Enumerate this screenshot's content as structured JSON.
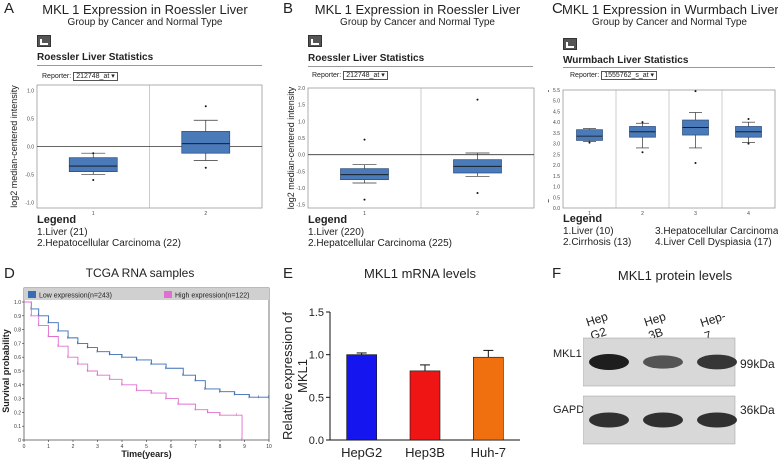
{
  "panels": {
    "A": {
      "label": "A",
      "title": "MKL 1 Expression in Roessler Liver",
      "subtitle": "Group by Cancer and Normal Type",
      "stats_title": "Roessler Liver Statistics",
      "reporter_label": "Reporter:",
      "reporter_value": "212748_at",
      "legend_title": "Legend",
      "legend_items": [
        "1.Liver (21)",
        "2.Hepatocellular Carcinoma (22)"
      ]
    },
    "B": {
      "label": "B",
      "title": "MKL 1 Expression in Roessler Liver",
      "subtitle": "Group by Cancer and Normal Type",
      "stats_title": "Roessler Liver Statistics",
      "reporter_label": "Reporter:",
      "reporter_value": "212748_at",
      "legend_title": "Legend",
      "legend_items": [
        "1.Liver (220)",
        "2.Hepatcellular Carcinoma (225)"
      ]
    },
    "C": {
      "label": "C",
      "title": "MKL 1 Expression in Wurmbach Liver",
      "subtitle": "Group by Cancer and Normal Type",
      "stats_title": "Wurmbach Liver Statistics",
      "reporter_label": "Reporter:",
      "reporter_value": "1555762_s_at",
      "legend_title": "Legend",
      "legend_items": [
        "1.Liver (10)",
        "2.Cirrhosis (13)",
        "3.Hepatocellular Carcinoma (35)",
        "4.Liver Cell Dyspiasia (17)"
      ]
    },
    "D": {
      "label": "D"
    },
    "E": {
      "label": "E"
    },
    "F": {
      "label": "F",
      "title": "MKL1 protein levels"
    }
  },
  "blot": {
    "lanes": [
      "Hep G2",
      "Hep 3B",
      "Hep-7"
    ],
    "rows": [
      {
        "name": "MKL1",
        "size": "99kDa",
        "intensities": [
          1.0,
          0.55,
          0.8
        ]
      },
      {
        "name": "GAPDH",
        "size": "36kDa",
        "intensities": [
          0.85,
          0.85,
          0.85
        ]
      }
    ]
  },
  "chart_data": [
    {
      "type": "box",
      "id": "A",
      "ylabel": "log2 median-centered intensity",
      "ylim": [
        -1.1,
        1.1
      ],
      "yticks": [
        -1.0,
        -0.5,
        0.0,
        0.5,
        1.0
      ],
      "ytick_labels": [
        "-1.0",
        "-0.5",
        "0.0",
        "0.5",
        "1.0"
      ],
      "categories": [
        "1",
        "2"
      ],
      "boxes": [
        {
          "min": -0.5,
          "q1": -0.45,
          "median": -0.35,
          "q3": -0.2,
          "max": -0.12,
          "outliers": [
            -0.12,
            -0.6
          ]
        },
        {
          "min": -0.25,
          "q1": -0.12,
          "median": 0.05,
          "q3": 0.27,
          "max": 0.47,
          "outliers": [
            0.72,
            -0.38
          ]
        }
      ]
    },
    {
      "type": "box",
      "id": "B",
      "ylabel": "log2 median-centered intensity",
      "ylim": [
        -1.6,
        2.0
      ],
      "yticks": [
        -1.5,
        -1.0,
        -0.5,
        0.0,
        0.5,
        1.0,
        1.5,
        2.0
      ],
      "ytick_labels": [
        "-1.5",
        "-1.0",
        "-0.5",
        "0.0",
        "0.5",
        "1.0",
        "1.5",
        "2.0"
      ],
      "categories": [
        "1",
        "2"
      ],
      "boxes": [
        {
          "min": -0.85,
          "q1": -0.75,
          "median": -0.6,
          "q3": -0.42,
          "max": -0.3,
          "outliers": [
            0.45,
            -1.35
          ]
        },
        {
          "min": -0.65,
          "q1": -0.55,
          "median": -0.35,
          "q3": -0.15,
          "max": 0.05,
          "outliers": [
            1.65,
            -1.15
          ]
        }
      ]
    },
    {
      "type": "box",
      "id": "C",
      "ylabel": "log2 median-centered intensity",
      "ylim": [
        0.0,
        5.5
      ],
      "yticks": [
        0.0,
        0.5,
        1.0,
        1.5,
        2.0,
        2.5,
        3.0,
        3.5,
        4.0,
        4.5,
        5.0,
        5.5
      ],
      "ytick_labels": [
        "0.0",
        "0.5",
        "1.0",
        "1.5",
        "2.0",
        "2.5",
        "3.0",
        "3.5",
        "4.0",
        "4.5",
        "5.0",
        "5.5"
      ],
      "categories": [
        "1",
        "2",
        "3",
        "4"
      ],
      "boxes": [
        {
          "min": 3.1,
          "q1": 3.15,
          "median": 3.35,
          "q3": 3.65,
          "max": 3.7,
          "outliers": [
            3.05
          ]
        },
        {
          "min": 2.8,
          "q1": 3.3,
          "median": 3.55,
          "q3": 3.8,
          "max": 3.95,
          "outliers": [
            4.0,
            2.6
          ]
        },
        {
          "min": 2.8,
          "q1": 3.4,
          "median": 3.75,
          "q3": 4.1,
          "max": 4.45,
          "outliers": [
            5.45,
            2.1
          ]
        },
        {
          "min": 3.05,
          "q1": 3.3,
          "median": 3.55,
          "q3": 3.8,
          "max": 4.0,
          "outliers": [
            4.15,
            3.0
          ]
        }
      ]
    },
    {
      "type": "line",
      "id": "D",
      "title": "TCGA RNA samples",
      "xlabel": "Time(years)",
      "ylabel": "Survival probability",
      "xlim": [
        0,
        10
      ],
      "ylim": [
        0,
        1.0
      ],
      "xticks": [
        0,
        1,
        2,
        3,
        4,
        5,
        6,
        7,
        8,
        9,
        10
      ],
      "xtick_labels": [
        "0",
        "1",
        "2",
        "3",
        "4",
        "5",
        "6",
        "7",
        "8",
        "9",
        "10"
      ],
      "yticks": [
        0,
        0.1,
        0.2,
        0.3,
        0.4,
        0.5,
        0.6,
        0.7,
        0.8,
        0.9,
        1.0
      ],
      "ytick_labels": [
        "0",
        "0.1",
        "0.2",
        "0.3",
        "0.4",
        "0.5",
        "0.6",
        "0.7",
        "0.8",
        "0.9",
        "1.0"
      ],
      "series": [
        {
          "name": "Low expression(n=243)",
          "color": "#3a6bb5",
          "x": [
            0,
            0.3,
            0.6,
            1.0,
            1.4,
            1.8,
            2.2,
            2.6,
            3.0,
            3.5,
            4.0,
            4.6,
            5.2,
            5.8,
            6.5,
            7.0,
            7.4,
            8.0,
            8.6,
            9.2,
            9.6,
            10.0
          ],
          "y": [
            1.0,
            0.95,
            0.9,
            0.85,
            0.79,
            0.74,
            0.7,
            0.67,
            0.64,
            0.62,
            0.6,
            0.58,
            0.55,
            0.52,
            0.47,
            0.43,
            0.37,
            0.35,
            0.33,
            0.31,
            0.31,
            0.31
          ]
        },
        {
          "name": "High expression(n=122)",
          "color": "#e070d0",
          "x": [
            0,
            0.3,
            0.6,
            1.0,
            1.4,
            1.8,
            2.2,
            2.6,
            3.0,
            3.5,
            4.0,
            4.6,
            5.2,
            5.8,
            6.3,
            7.0,
            7.5,
            8.0,
            8.7,
            8.9
          ],
          "y": [
            1.0,
            0.9,
            0.83,
            0.75,
            0.68,
            0.6,
            0.55,
            0.5,
            0.47,
            0.44,
            0.4,
            0.36,
            0.34,
            0.3,
            0.26,
            0.22,
            0.2,
            0.18,
            0.18,
            0.0
          ]
        }
      ]
    },
    {
      "type": "bar",
      "id": "E",
      "title": "MKL1 mRNA levels",
      "ylabel": "Relative expression of MKL1",
      "ylim": [
        0,
        1.5
      ],
      "yticks": [
        0.0,
        0.5,
        1.0,
        1.5
      ],
      "ytick_labels": [
        "0.0",
        "0.5",
        "1.0",
        "1.5"
      ],
      "categories": [
        "HepG2",
        "Hep3B",
        "Huh-7"
      ],
      "values": [
        1.0,
        0.81,
        0.97
      ],
      "errors": [
        0.02,
        0.07,
        0.08
      ],
      "colors": [
        "#1515f0",
        "#f01515",
        "#f07010"
      ]
    }
  ]
}
